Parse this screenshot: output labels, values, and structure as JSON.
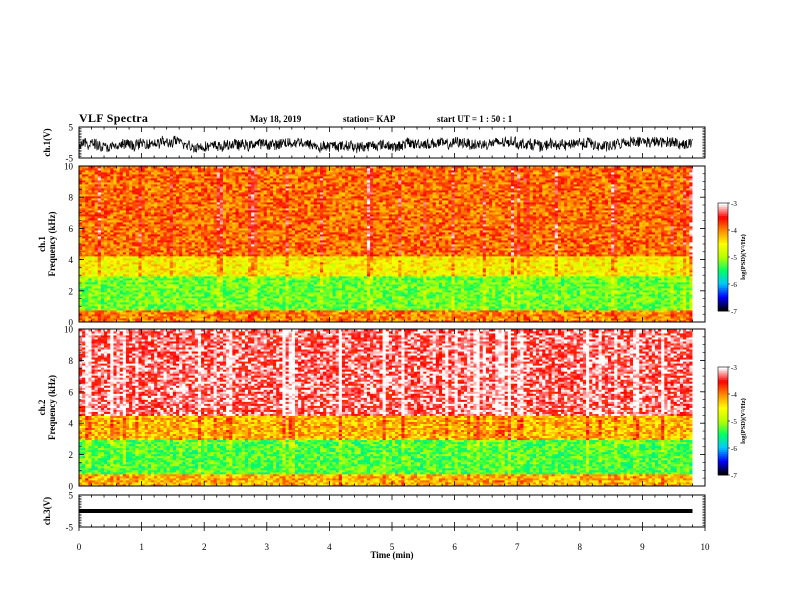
{
  "header": {
    "title": "VLF Spectra",
    "date": "May 18, 2019",
    "station": "station= KAP",
    "start_ut": "start  UT =   1 : 50 : 1"
  },
  "colors": {
    "trace": "#000000",
    "axis": "#000000",
    "colormap": [
      "#000000",
      "#0000ff",
      "#00c8ff",
      "#00ff64",
      "#b4ff00",
      "#ffff00",
      "#ff8c00",
      "#ff0000",
      "#ffffff"
    ]
  },
  "chart_data": [
    {
      "type": "line",
      "panel": "ch1-waveform",
      "ylabel": "ch.1(V)",
      "ylim": [
        -5,
        5
      ],
      "yticks": [
        "5",
        "-5"
      ],
      "xlim": [
        0,
        10
      ],
      "description_values": "continuous noisy voltage trace between about -3 V and +2 V over 0 to 9.8 min"
    },
    {
      "type": "heatmap",
      "panel": "ch1-spectrogram",
      "ylabel_line1": "ch.1",
      "ylabel_line2": "Frequency (kHz)",
      "ylim": [
        0,
        10
      ],
      "yticks": [
        "0",
        "2",
        "4",
        "6",
        "8",
        "10"
      ],
      "xlim": [
        0,
        10
      ],
      "colorbar": {
        "label": "log(PSD)(V²/Hz)",
        "range": [
          -7,
          -3
        ],
        "ticks": [
          "-3",
          "-4",
          "-5",
          "-6",
          "-7"
        ]
      },
      "bands": [
        {
          "f_from": 0,
          "f_to": 0.8,
          "level": -4.0
        },
        {
          "f_from": 0.8,
          "f_to": 3.0,
          "level": -5.2
        },
        {
          "f_from": 3.0,
          "f_to": 4.2,
          "level": -4.5
        },
        {
          "f_from": 4.2,
          "f_to": 10,
          "level": -3.9
        }
      ]
    },
    {
      "type": "heatmap",
      "panel": "ch2-spectrogram",
      "ylabel_line1": "ch.2",
      "ylabel_line2": "Frequency (kHz)",
      "ylim": [
        0,
        10
      ],
      "yticks": [
        "0",
        "2",
        "4",
        "6",
        "8",
        "10"
      ],
      "xlim": [
        0,
        10
      ],
      "colorbar": {
        "label": "log(PSD)(V²/Hz)",
        "range": [
          -7,
          -3
        ],
        "ticks": [
          "-3",
          "-4",
          "-5",
          "-6",
          "-7"
        ]
      },
      "bands": [
        {
          "f_from": 0,
          "f_to": 0.8,
          "level": -4.2
        },
        {
          "f_from": 0.8,
          "f_to": 3.0,
          "level": -5.3
        },
        {
          "f_from": 3.0,
          "f_to": 4.5,
          "level": -4.2
        },
        {
          "f_from": 4.5,
          "f_to": 10,
          "level": -3.3
        }
      ]
    },
    {
      "type": "line",
      "panel": "ch3-waveform",
      "ylabel": "ch.3(V)",
      "ylim": [
        -5,
        5
      ],
      "yticks": [
        "5",
        "-5"
      ],
      "xlim": [
        0,
        10
      ],
      "level": 0,
      "description_values": "flat trace at about 0 V over 0 to 9.8 min"
    }
  ],
  "xaxis": {
    "label": "Time  (min)",
    "range": [
      0,
      10
    ],
    "ticks": [
      "0",
      "1",
      "2",
      "3",
      "4",
      "5",
      "6",
      "7",
      "8",
      "9",
      "10"
    ],
    "data_end": 9.8
  }
}
